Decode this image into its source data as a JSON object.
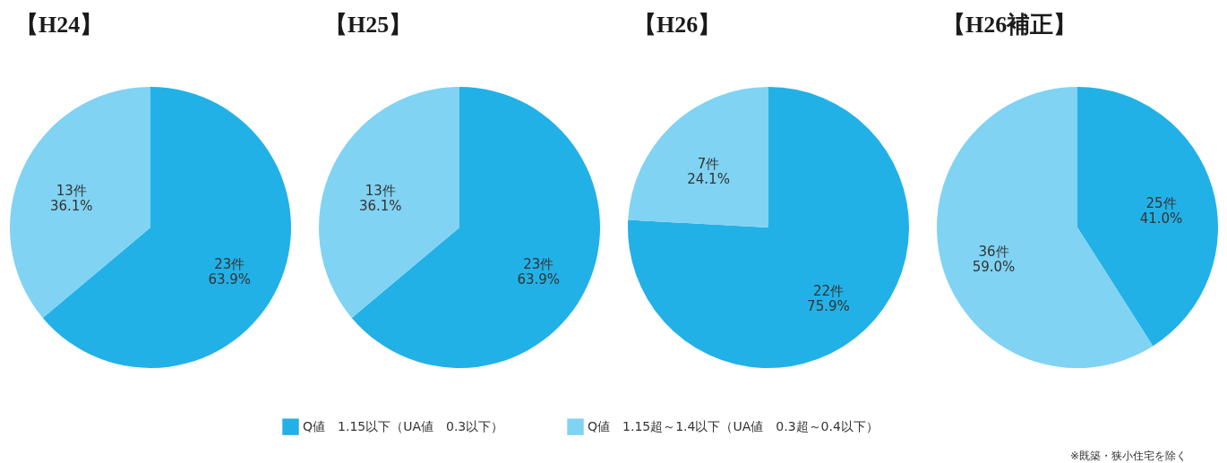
{
  "chart_data": {
    "type": "pie",
    "categories": [
      "Q値　1.15以下（UA値　0.3以下）",
      "Q値　1.15超～1.4以下（UA値　0.3超～0.4以下）"
    ],
    "colors": [
      "#22b1e6",
      "#80d3f2"
    ],
    "series": [
      {
        "name": "【H24】",
        "values": [
          23,
          13
        ],
        "value_labels": [
          "23件\n63.9%",
          "13件\n36.1%"
        ]
      },
      {
        "name": "【H25】",
        "values": [
          23,
          13
        ],
        "value_labels": [
          "23件\n63.9%",
          "13件\n36.1%"
        ]
      },
      {
        "name": "【H26】",
        "values": [
          22,
          7
        ],
        "value_labels": [
          "22件\n75.9%",
          "7件\n24.1%"
        ]
      },
      {
        "name": "【H26補正】",
        "values": [
          25,
          36
        ],
        "value_labels": [
          "25件\n41.0%",
          "36件\n59.0%"
        ]
      }
    ],
    "legend": "bottom",
    "annotations": [
      "※既築・狭小住宅を除く"
    ]
  }
}
